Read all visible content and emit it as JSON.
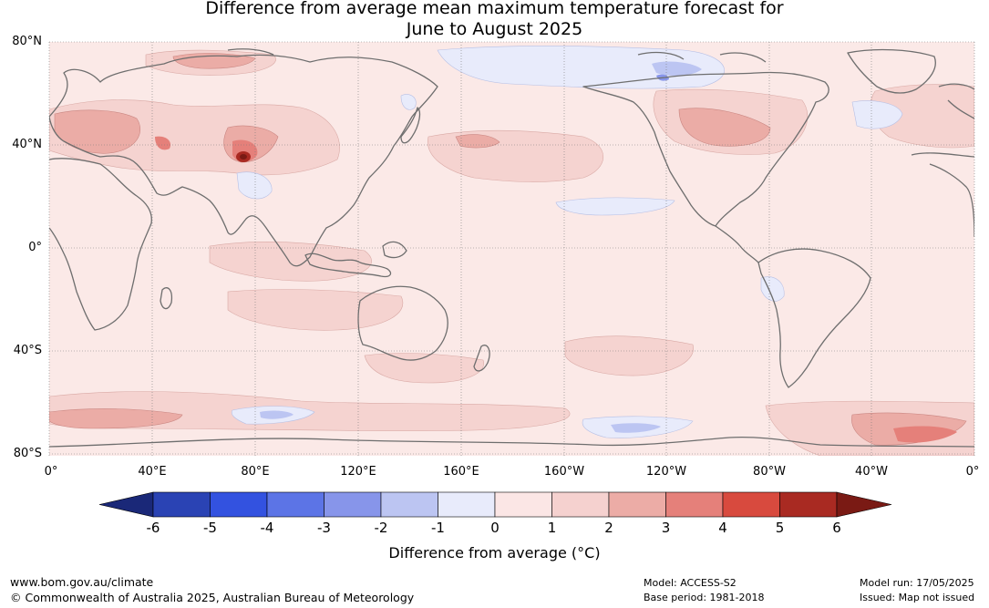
{
  "title": {
    "line1": "Difference from average mean maximum temperature forecast for",
    "line2": "June to August 2025"
  },
  "map": {
    "lat_labels": [
      "80°N",
      "40°N",
      "0°",
      "40°S",
      "80°S"
    ],
    "lon_labels": [
      "0°",
      "40°E",
      "80°E",
      "120°E",
      "160°E",
      "160°W",
      "120°W",
      "80°W",
      "40°W",
      "0°"
    ]
  },
  "colorbar": {
    "label": "Difference from average (°C)",
    "ticks": [
      "-6",
      "-5",
      "-4",
      "-3",
      "-2",
      "-1",
      "0",
      "1",
      "2",
      "3",
      "4",
      "5",
      "6"
    ],
    "colors": [
      "#1a2878",
      "#2a43b4",
      "#3352e0",
      "#5c74e6",
      "#8795ea",
      "#bcc5f2",
      "#e8ebfb",
      "#fbe6e5",
      "#f5d1cf",
      "#ecaca6",
      "#e5807a",
      "#d84a3e",
      "#a92a22",
      "#7a1a14"
    ]
  },
  "footer": {
    "website": "www.bom.gov.au/climate",
    "copyright": "© Commonwealth of Australia 2025, Australian Bureau of Meteorology",
    "model": "Model: ACCESS-S2",
    "base_period": "Base period: 1981-2018",
    "model_run": "Model run: 17/05/2025",
    "issued": "Issued: Map not issued"
  }
}
